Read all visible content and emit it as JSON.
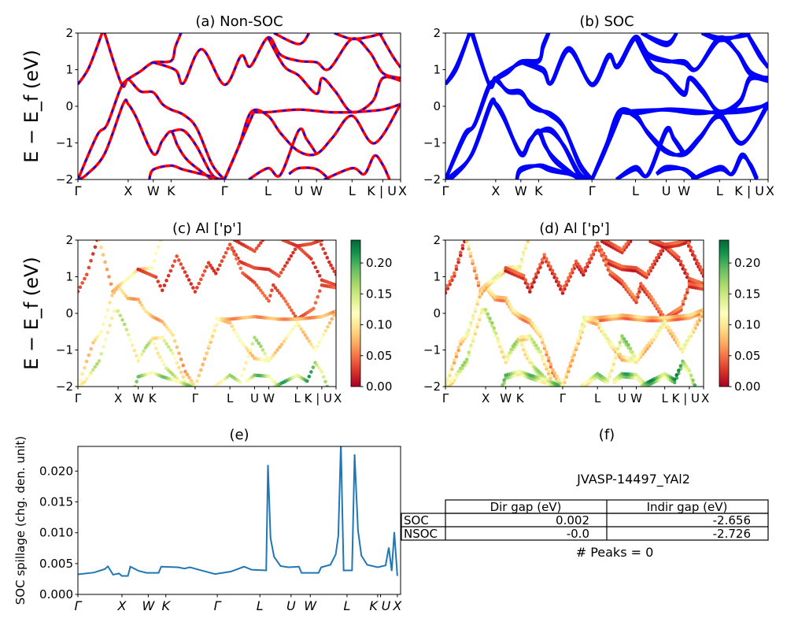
{
  "colors": {
    "nsoc_line": "#ff0000",
    "nsoc_dash": "#0000ff",
    "soc_line": "#0000ff",
    "spillage_line": "#1f77b4",
    "colormap": "RdYlGn"
  },
  "chart_data": [
    {
      "id": "a",
      "type": "line",
      "title": "(a) Non-SOC",
      "ylabel": "E − E_f (eV)",
      "ylim": [
        -2,
        2
      ],
      "yticks": [
        2,
        1,
        0,
        -1,
        -2
      ],
      "ytick_labels": [
        "2",
        "1",
        "0",
        "−1",
        "−2"
      ],
      "xlim": [
        0,
        6.42
      ],
      "xticks": [
        0,
        1,
        1.5,
        1.854,
        2.915,
        3.781,
        4.393,
        4.747,
        5.454,
        6.066,
        6.42
      ],
      "xtick_labels": [
        "Γ",
        "X",
        "W",
        "K",
        "Γ",
        "L",
        "U",
        "W",
        "L",
        "K | U",
        "X"
      ],
      "style": "red solid with blue dashed overlay"
    },
    {
      "id": "b",
      "type": "line",
      "title": "(b) SOC",
      "ylim": [
        -2,
        2
      ],
      "ytick_labels": [
        "2",
        "1",
        "0",
        "−1",
        "−2"
      ],
      "xtick_labels": [
        "Γ",
        "X",
        "W",
        "K",
        "Γ",
        "L",
        "U",
        "W",
        "L",
        "K | U",
        "X"
      ],
      "style": "thick blue, spin-orbit split"
    },
    {
      "id": "c",
      "type": "scatter",
      "title": "(c)  Al ['p']",
      "ylabel": "E − E_f (eV)",
      "ylim": [
        -2,
        2
      ],
      "ytick_labels": [
        "2",
        "1",
        "0",
        "−1",
        "−2"
      ],
      "xtick_labels": [
        "Γ",
        "X",
        "W",
        "K",
        "Γ",
        "L",
        "U",
        "W",
        "L",
        "K | U",
        "X"
      ],
      "colorbar": {
        "range": [
          0,
          0.237
        ],
        "ticks": [
          0,
          0.05,
          0.1,
          0.15,
          0.2
        ],
        "tick_labels": [
          "0.00",
          "0.05",
          "0.10",
          "0.15",
          "0.20"
        ]
      }
    },
    {
      "id": "d",
      "type": "scatter",
      "title": "(d) Al ['p']",
      "ylim": [
        -2,
        2
      ],
      "ytick_labels": [
        "2",
        "1",
        "0",
        "−1",
        "−2"
      ],
      "xtick_labels": [
        "Γ",
        "X",
        "W",
        "K",
        "Γ",
        "L",
        "U",
        "W",
        "L",
        "K | U",
        "X"
      ],
      "colorbar": {
        "range": [
          0,
          0.237
        ],
        "ticks": [
          0,
          0.05,
          0.1,
          0.15,
          0.2
        ],
        "tick_labels": [
          "0.00",
          "0.05",
          "0.10",
          "0.15",
          "0.20"
        ]
      }
    },
    {
      "id": "e",
      "type": "line",
      "title": "(e)",
      "ylabel": "SOC spillage (chg. den. unit)",
      "ylim": [
        0,
        0.024
      ],
      "xlim": [
        0,
        200
      ],
      "yticks": [
        0,
        0.005,
        0.01,
        0.015,
        0.02
      ],
      "ytick_labels": [
        "0.000",
        "0.005",
        "0.010",
        "0.015",
        "0.020"
      ],
      "xticks": [
        0,
        27.3,
        43.6,
        54.5,
        86.4,
        112.8,
        132.1,
        144,
        166.8,
        185.8,
        187.6,
        198
      ],
      "xtick_labels": [
        "Γ",
        "X",
        "W",
        "K",
        "Γ",
        "L",
        "U",
        "W",
        "L",
        "K",
        "U",
        "X"
      ],
      "points": [
        [
          0,
          0.00325
        ],
        [
          10,
          0.00355
        ],
        [
          16.6,
          0.0041
        ],
        [
          18.6,
          0.00455
        ],
        [
          21.8,
          0.0032
        ],
        [
          25.5,
          0.0034
        ],
        [
          27.2,
          0.003
        ],
        [
          31,
          0.003
        ],
        [
          32.5,
          0.0045
        ],
        [
          37.8,
          0.0038
        ],
        [
          42.6,
          0.0035
        ],
        [
          50,
          0.0035
        ],
        [
          51.6,
          0.0045
        ],
        [
          62,
          0.0044
        ],
        [
          66,
          0.0042
        ],
        [
          69.5,
          0.0044
        ],
        [
          75,
          0.004
        ],
        [
          85,
          0.0033
        ],
        [
          94.7,
          0.0037
        ],
        [
          103,
          0.0045
        ],
        [
          107.7,
          0.004
        ],
        [
          116.7,
          0.0039
        ],
        [
          117.8,
          0.021
        ],
        [
          119.4,
          0.0091
        ],
        [
          121.6,
          0.0061
        ],
        [
          125.6,
          0.0046
        ],
        [
          130.5,
          0.0044
        ],
        [
          137,
          0.0045
        ],
        [
          138.6,
          0.0035
        ],
        [
          149.2,
          0.0035
        ],
        [
          150.8,
          0.0044
        ],
        [
          156.5,
          0.0048
        ],
        [
          159.8,
          0.0065
        ],
        [
          161.4,
          0.0095
        ],
        [
          163,
          0.0245
        ],
        [
          164.7,
          0.0039
        ],
        [
          169.9,
          0.0039
        ],
        [
          171.5,
          0.0227
        ],
        [
          173.6,
          0.0104
        ],
        [
          175.7,
          0.0063
        ],
        [
          179.3,
          0.0048
        ],
        [
          185.8,
          0.0044
        ],
        [
          190.7,
          0.0047
        ],
        [
          192.7,
          0.0076
        ],
        [
          194.5,
          0.0038
        ],
        [
          196.1,
          0.0101
        ],
        [
          198,
          0.003
        ]
      ]
    }
  ],
  "bands": [
    {
      "w": 0.03,
      "pts": [
        [
          0,
          0.6
        ],
        [
          0.22,
          1.06
        ],
        [
          0.48,
          2.0
        ],
        [
          0.55,
          2.3
        ]
      ]
    },
    {
      "w": 0.08,
      "pts": [
        [
          0.45,
          2.3
        ],
        [
          0.53,
          2.0
        ],
        [
          0.87,
          0.6
        ],
        [
          1.0,
          0.74
        ],
        [
          1.24,
          0.41
        ],
        [
          1.5,
          0.38
        ],
        [
          1.68,
          0.06
        ],
        [
          1.854,
          -0.09
        ],
        [
          2.1,
          -0.23
        ],
        [
          2.36,
          -0.59
        ],
        [
          2.67,
          -1.59
        ],
        [
          2.915,
          -2.0
        ]
      ]
    },
    {
      "w": 0.1,
      "pts": [
        [
          0,
          -2.0
        ],
        [
          0.38,
          -0.8
        ],
        [
          0.58,
          -0.5
        ],
        [
          0.85,
          0.49
        ],
        [
          1.0,
          0.74
        ],
        [
          1.24,
          0.95
        ],
        [
          1.5,
          1.2
        ],
        [
          1.854,
          1.24
        ],
        [
          1.94,
          1.63
        ],
        [
          2.05,
          2.0
        ],
        [
          2.1,
          2.2
        ]
      ]
    },
    {
      "w": 0.13,
      "pts": [
        [
          0,
          -2.0
        ],
        [
          0.17,
          -1.87
        ],
        [
          0.53,
          -1.3
        ],
        [
          0.9,
          0.06
        ],
        [
          1.0,
          0.06
        ],
        [
          1.16,
          -0.3
        ],
        [
          1.5,
          -1.3
        ],
        [
          1.68,
          -0.94
        ],
        [
          1.854,
          -0.69
        ],
        [
          1.99,
          -1.09
        ],
        [
          2.2,
          -1.5
        ],
        [
          2.67,
          -2.0
        ]
      ]
    },
    {
      "w": 0.12,
      "pts": [
        [
          1.854,
          -0.69
        ],
        [
          2.1,
          -0.66
        ],
        [
          2.36,
          -1.09
        ],
        [
          2.67,
          -1.87
        ],
        [
          2.915,
          -2.0
        ]
      ]
    },
    {
      "w": 0.03,
      "pts": [
        [
          1.5,
          1.2
        ],
        [
          1.94,
          0.99
        ],
        [
          2.1,
          0.63
        ],
        [
          2.46,
          1.56
        ],
        [
          2.915,
          0.59
        ],
        [
          3.25,
          1.38
        ],
        [
          3.43,
          1.09
        ],
        [
          3.781,
          1.88
        ],
        [
          4.03,
          1.41
        ],
        [
          4.393,
          1.24
        ],
        [
          4.747,
          1.2
        ],
        [
          5.0,
          1.02
        ],
        [
          5.454,
          1.84
        ],
        [
          5.8,
          1.49
        ],
        [
          6.066,
          0.91
        ],
        [
          6.42,
          0.77
        ]
      ]
    },
    {
      "w": 0.04,
      "pts": [
        [
          3.781,
          1.88
        ],
        [
          4.1,
          1.1
        ],
        [
          4.393,
          0.84
        ],
        [
          4.747,
          0.34
        ],
        [
          4.86,
          0.77
        ],
        [
          5.12,
          0.41
        ],
        [
          5.454,
          -0.16
        ],
        [
          5.86,
          0.13
        ],
        [
          6.066,
          0.77
        ],
        [
          6.42,
          0.7
        ]
      ]
    },
    {
      "w": 0.07,
      "pts": [
        [
          3.5,
          -0.16
        ],
        [
          3.781,
          -0.16
        ],
        [
          4.393,
          -0.09
        ],
        [
          5.0,
          -0.16
        ],
        [
          5.454,
          -0.16
        ],
        [
          6.066,
          -0.09
        ],
        [
          6.42,
          0.06
        ]
      ]
    },
    {
      "w": 0.09,
      "pts": [
        [
          2.915,
          -2.0
        ],
        [
          3.25,
          -0.94
        ],
        [
          3.5,
          -0.16
        ]
      ]
    },
    {
      "w": 0.1,
      "pts": [
        [
          2.915,
          -2.0
        ],
        [
          3.2,
          -1.1
        ],
        [
          3.45,
          -0.15
        ],
        [
          3.781,
          -0.26
        ],
        [
          4.03,
          -0.73
        ],
        [
          4.393,
          -1.23
        ],
        [
          4.747,
          -1.3
        ],
        [
          5.07,
          -0.85
        ],
        [
          5.454,
          -0.26
        ],
        [
          5.9,
          -1.01
        ],
        [
          6.42,
          0.06
        ]
      ]
    },
    {
      "w": 0.14,
      "pts": [
        [
          3.4,
          -2.0
        ],
        [
          3.781,
          -1.69
        ],
        [
          4.03,
          -1.87
        ],
        [
          4.393,
          -0.66
        ],
        [
          4.55,
          -0.9
        ],
        [
          4.747,
          -1.3
        ]
      ]
    },
    {
      "w": 0.16,
      "pts": [
        [
          4.2,
          -1.85
        ],
        [
          4.393,
          -1.69
        ],
        [
          4.747,
          -1.72
        ],
        [
          5.0,
          -2.0
        ]
      ]
    },
    {
      "w": 0.17,
      "pts": [
        [
          4.9,
          -2.0
        ],
        [
          5.454,
          -1.69
        ],
        [
          5.7,
          -1.85
        ],
        [
          5.9,
          -1.35
        ],
        [
          6.066,
          -1.6
        ],
        [
          6.2,
          -2.0
        ]
      ]
    },
    {
      "w": 0.15,
      "pts": [
        [
          1.42,
          -2.0
        ],
        [
          1.5,
          -1.73
        ],
        [
          1.854,
          -1.62
        ],
        [
          2.1,
          -1.73
        ],
        [
          2.6,
          -1.9
        ],
        [
          2.8,
          -2.0
        ]
      ]
    },
    {
      "w": 0.03,
      "pts": [
        [
          5.1,
          2.0
        ],
        [
          5.454,
          1.84
        ],
        [
          5.8,
          1.9
        ],
        [
          6.066,
          2.0
        ]
      ]
    },
    {
      "w": 0.03,
      "pts": [
        [
          6.0,
          2.0
        ],
        [
          6.25,
          1.4
        ],
        [
          6.42,
          1.06
        ]
      ]
    },
    {
      "w": 0.03,
      "pts": [
        [
          3.9,
          2.0
        ],
        [
          4.393,
          1.7
        ],
        [
          4.6,
          2.0
        ]
      ]
    }
  ],
  "panel_f": {
    "title": "(f)",
    "material": "JVASP-14497_YAl2",
    "table": {
      "columns": [
        "Dir gap (eV)",
        "Indir gap (eV)"
      ],
      "rows": [
        {
          "label": "SOC",
          "dir": "0.002",
          "indir": "-2.656"
        },
        {
          "label": "NSOC",
          "dir": "-0.0",
          "indir": "-2.726"
        }
      ]
    },
    "peaks": "# Peaks = 0"
  }
}
